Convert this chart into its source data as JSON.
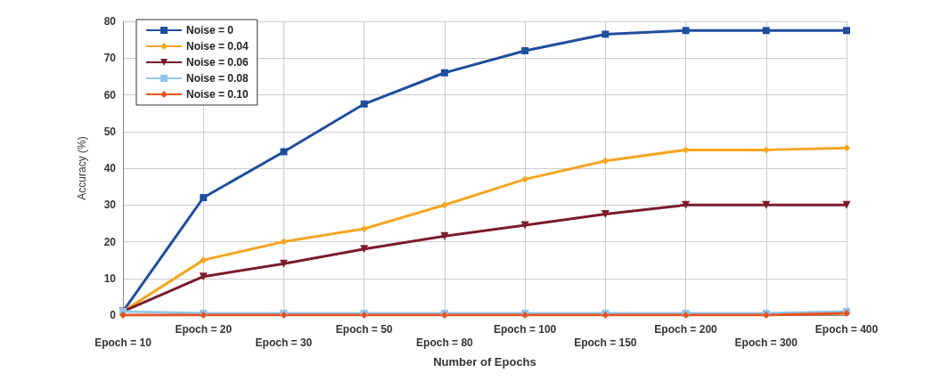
{
  "chart_data": {
    "type": "line",
    "xlabel": "Number of Epochs",
    "ylabel": "Accuracy (%)",
    "categories": [
      "Epoch = 10",
      "Epoch = 20",
      "Epoch = 30",
      "Epoch = 50",
      "Epoch = 80",
      "Epoch = 100",
      "Epoch = 150",
      "Epoch = 200",
      "Epoch = 300",
      "Epoch = 400"
    ],
    "series": [
      {
        "name": "Noise = 0",
        "color": "#1f4e9c",
        "marker": "square",
        "values": [
          1,
          32,
          44.5,
          57.5,
          66,
          72,
          76.5,
          77.5,
          77.5,
          77.5
        ]
      },
      {
        "name": "Noise = 0.04",
        "color": "#f5a623",
        "marker": "diamond",
        "values": [
          1,
          15,
          20,
          23.5,
          30,
          37,
          42,
          45,
          45,
          45.5
        ]
      },
      {
        "name": "Noise = 0.06",
        "color": "#7b1c2e",
        "marker": "triangle",
        "values": [
          1,
          10.5,
          14,
          18,
          21.5,
          24.5,
          27.5,
          30,
          30,
          30
        ]
      },
      {
        "name": "Noise = 0.08",
        "color": "#8fc5ea",
        "marker": "square",
        "values": [
          1,
          0.5,
          0.5,
          0.5,
          0.5,
          0.5,
          0.5,
          0.5,
          0.5,
          1
        ]
      },
      {
        "name": "Noise = 0.10",
        "color": "#e8531e",
        "marker": "diamond",
        "values": [
          0,
          0,
          0,
          0,
          0,
          0,
          0,
          0,
          0,
          0.5
        ]
      }
    ],
    "ylim": [
      0,
      80
    ],
    "yticks": [
      0,
      10,
      20,
      30,
      40,
      50,
      60,
      70,
      80
    ],
    "grid": true,
    "legend": "top left",
    "line_style": "solid"
  }
}
